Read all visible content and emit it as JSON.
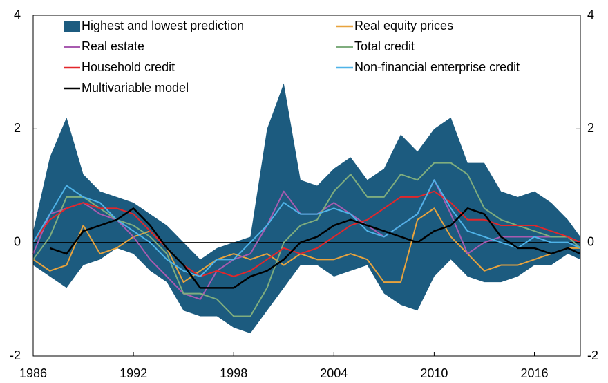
{
  "chart_data": {
    "type": "line",
    "x": [
      1986,
      1987,
      1988,
      1989,
      1990,
      1991,
      1992,
      1993,
      1994,
      1995,
      1996,
      1997,
      1998,
      1999,
      2000,
      2001,
      2002,
      2003,
      2004,
      2005,
      2006,
      2007,
      2008,
      2009,
      2010,
      2011,
      2012,
      2013,
      2014,
      2015,
      2016,
      2017,
      2018,
      2018.75
    ],
    "xlim": [
      1986,
      2018.75
    ],
    "xticks": [
      1986,
      1992,
      1998,
      2004,
      2010,
      2016
    ],
    "ylim": [
      -2,
      4
    ],
    "yticks": [
      -2,
      0,
      2,
      4
    ],
    "y2lim": [
      -2,
      4
    ],
    "y2ticks": [
      -2,
      0,
      2,
      4
    ],
    "legend": "top",
    "series": [
      {
        "name": "Highest and lowest prediction",
        "color": "#1c5b7f",
        "high": [
          0.2,
          1.5,
          2.2,
          1.2,
          0.9,
          0.8,
          0.7,
          0.5,
          0.3,
          0,
          -0.3,
          -0.1,
          0,
          0.1,
          2.0,
          2.8,
          1.1,
          1.0,
          1.3,
          1.5,
          1.1,
          1.3,
          1.9,
          1.6,
          2.0,
          2.2,
          1.4,
          1.4,
          0.9,
          0.8,
          0.9,
          0.7,
          0.4,
          0.1
        ],
        "low": [
          -0.4,
          -0.6,
          -0.8,
          -0.4,
          -0.3,
          -0.1,
          -0.2,
          -0.5,
          -0.7,
          -1.2,
          -1.3,
          -1.3,
          -1.5,
          -1.6,
          -1.2,
          -0.8,
          -0.4,
          -0.4,
          -0.6,
          -0.5,
          -0.4,
          -0.9,
          -1.1,
          -1.2,
          -0.6,
          -0.3,
          -0.6,
          -0.7,
          -0.7,
          -0.6,
          -0.4,
          -0.4,
          -0.2,
          -0.3
        ]
      },
      {
        "name": "Real equity prices",
        "color": "#e8a33d",
        "values": [
          -0.3,
          -0.5,
          -0.4,
          0.3,
          -0.2,
          -0.1,
          0.1,
          0.2,
          -0.1,
          -0.7,
          -0.5,
          -0.3,
          -0.2,
          -0.3,
          -0.2,
          -0.4,
          -0.2,
          -0.3,
          -0.3,
          -0.2,
          -0.3,
          -0.7,
          -0.7,
          0.4,
          0.6,
          0.1,
          -0.2,
          -0.5,
          -0.4,
          -0.4,
          -0.3,
          -0.2,
          -0.1,
          -0.1
        ]
      },
      {
        "name": "Real estate",
        "color": "#a85bb0",
        "values": [
          -0.2,
          0.5,
          0.6,
          0.7,
          0.5,
          0.4,
          0.1,
          -0.3,
          -0.6,
          -0.9,
          -1.0,
          -0.5,
          -0.3,
          -0.2,
          0.3,
          0.9,
          0.5,
          0.5,
          0.7,
          0.5,
          0.3,
          0.1,
          0.3,
          0.5,
          1.1,
          0.5,
          -0.2,
          0,
          0.1,
          0.1,
          0.1,
          0.1,
          0.1,
          0
        ]
      },
      {
        "name": "Total credit",
        "color": "#7fad7e",
        "values": [
          -0.3,
          0.1,
          0.8,
          0.8,
          0.6,
          0.4,
          0.3,
          0.1,
          -0.2,
          -0.9,
          -0.9,
          -1.0,
          -1.3,
          -1.3,
          -0.8,
          0,
          0.3,
          0.4,
          0.9,
          1.2,
          0.8,
          0.8,
          1.2,
          1.1,
          1.4,
          1.4,
          1.2,
          0.6,
          0.4,
          0.3,
          0.2,
          0.1,
          0.1,
          -0.1
        ]
      },
      {
        "name": "Household credit",
        "color": "#e3262a",
        "values": [
          0,
          0.4,
          0.6,
          0.7,
          0.6,
          0.6,
          0.5,
          0.2,
          -0.1,
          -0.4,
          -0.6,
          -0.5,
          -0.6,
          -0.5,
          -0.3,
          -0.1,
          -0.2,
          -0.1,
          0.1,
          0.3,
          0.4,
          0.6,
          0.8,
          0.8,
          0.9,
          0.7,
          0.4,
          0.4,
          0.3,
          0.3,
          0.3,
          0.2,
          0.1,
          0
        ]
      },
      {
        "name": "Non-financial enterprise credit",
        "color": "#4fb3e8",
        "values": [
          0,
          0.5,
          1.0,
          0.8,
          0.7,
          0.4,
          0.2,
          0,
          -0.3,
          -0.5,
          -0.6,
          -0.3,
          -0.3,
          0,
          0.3,
          0.7,
          0.5,
          0.5,
          0.6,
          0.5,
          0.2,
          0.1,
          0.3,
          0.5,
          1.1,
          0.6,
          0.2,
          0.1,
          0,
          -0.1,
          0.1,
          0,
          0,
          -0.1
        ]
      },
      {
        "name": "Multivariable model",
        "color": "#000000",
        "values": [
          null,
          -0.1,
          -0.2,
          0.2,
          0.3,
          0.4,
          0.6,
          0.3,
          -0.1,
          -0.4,
          -0.8,
          -0.8,
          -0.8,
          -0.6,
          -0.5,
          -0.3,
          0,
          0.1,
          0.3,
          0.4,
          0.3,
          0.2,
          0.1,
          0,
          0.2,
          0.3,
          0.6,
          0.5,
          0.1,
          -0.1,
          -0.1,
          -0.2,
          -0.1,
          -0.2
        ]
      }
    ]
  }
}
